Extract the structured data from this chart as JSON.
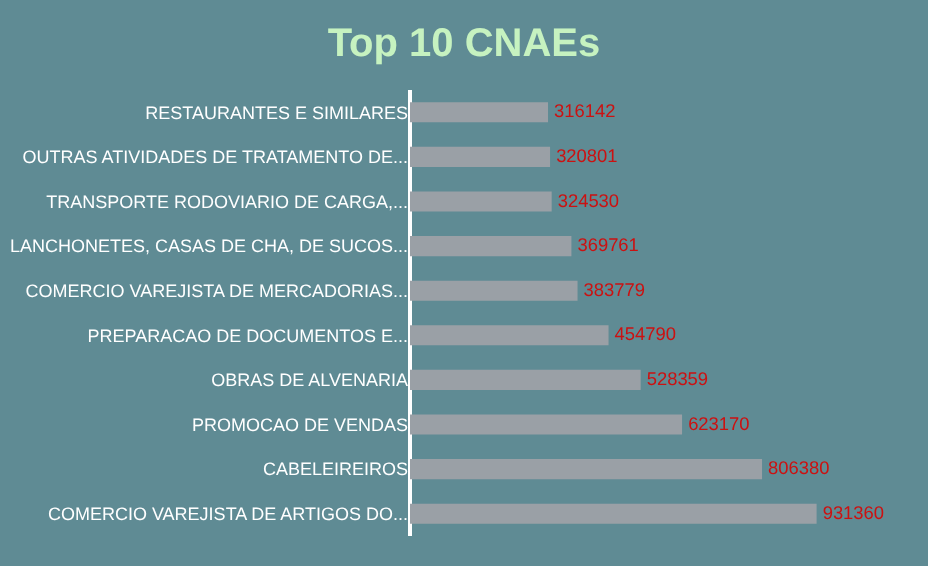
{
  "chart_data": {
    "type": "bar",
    "orientation": "horizontal",
    "title": "Top 10 CNAEs",
    "categories": [
      "RESTAURANTES E SIMILARES",
      "OUTRAS ATIVIDADES DE TRATAMENTO DE...",
      "TRANSPORTE RODOVIARIO DE CARGA,...",
      "LANCHONETES, CASAS DE CHA, DE SUCOS...",
      "COMERCIO VAREJISTA DE MERCADORIAS...",
      "PREPARACAO DE DOCUMENTOS E...",
      "OBRAS DE ALVENARIA",
      "PROMOCAO DE VENDAS",
      "CABELEIREIROS",
      "COMERCIO VAREJISTA DE ARTIGOS DO..."
    ],
    "values": [
      316142,
      320801,
      324530,
      369761,
      383779,
      454790,
      528359,
      623170,
      806380,
      931360
    ],
    "color": "#9aa0a6",
    "data_labels": true,
    "tick_labels": "y",
    "grid": false,
    "legend": false
  }
}
